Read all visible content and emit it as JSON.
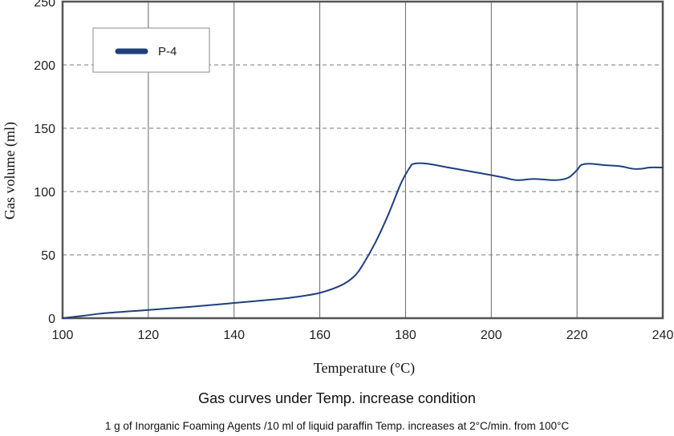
{
  "chart_data": {
    "type": "line",
    "title": "Gas curves under Temp. increase condition",
    "subtitle": "1 g of Inorganic Foaming Agents /10 ml of liquid paraffin Temp. increases at 2°C/min. from 100°C",
    "xlabel": "Temperature (°C)",
    "ylabel": "Gas volume (ml)",
    "xlim": [
      100,
      240
    ],
    "ylim": [
      0,
      250
    ],
    "x_ticks": [
      100,
      120,
      140,
      160,
      180,
      200,
      220,
      240
    ],
    "y_ticks": [
      0,
      50,
      100,
      150,
      200,
      250
    ],
    "grid": {
      "vertical": "solid",
      "horizontal": "dashed"
    },
    "legend_position": "top-left",
    "series": [
      {
        "name": "P-4",
        "color": "#1f3f7f",
        "x": [
          100,
          105,
          110,
          120,
          130,
          140,
          150,
          155,
          160,
          165,
          168,
          170,
          173,
          176,
          179,
          181,
          182,
          185,
          190,
          195,
          200,
          203,
          206,
          210,
          215,
          218,
          220,
          221,
          223,
          226,
          230,
          233,
          235,
          237,
          240
        ],
        "y": [
          0,
          2,
          4,
          6.5,
          9,
          12,
          15,
          17,
          20,
          26,
          33,
          42,
          60,
          82,
          107,
          119,
          122,
          122,
          119,
          116,
          113,
          111,
          109,
          110,
          109,
          111,
          117,
          121,
          122,
          121,
          120,
          118,
          118,
          119,
          119
        ]
      }
    ]
  }
}
